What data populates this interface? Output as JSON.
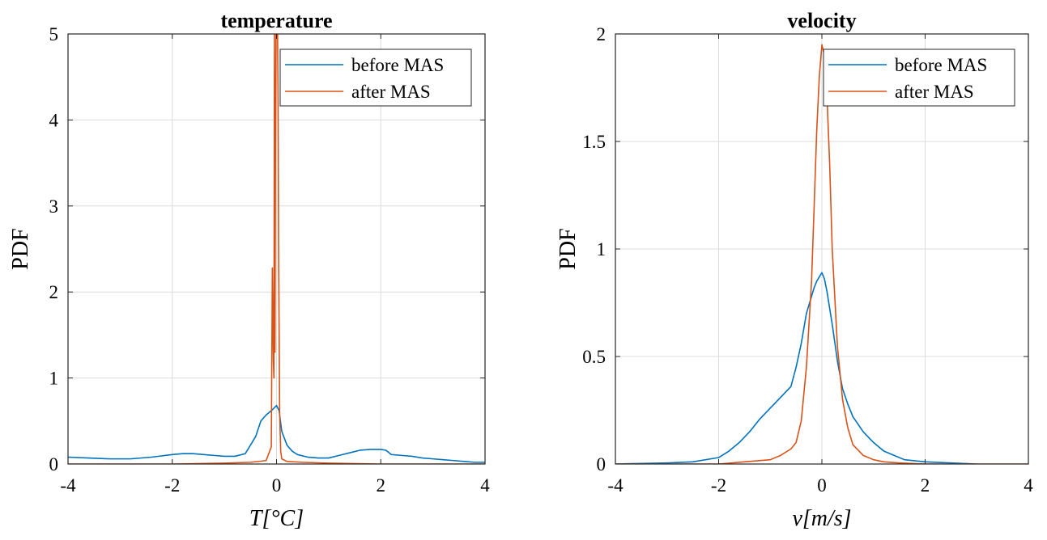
{
  "chart_data": [
    {
      "type": "line",
      "title": "temperature",
      "xlabel": "T[°C]",
      "ylabel": "PDF",
      "xlim": [
        -4,
        4
      ],
      "ylim": [
        0,
        5
      ],
      "xticks": [
        -4,
        -2,
        0,
        2,
        4
      ],
      "yticks": [
        0,
        1,
        2,
        3,
        4,
        5
      ],
      "grid": true,
      "legend": "top-right",
      "series": [
        {
          "name": "before MAS",
          "color": "#0072BD",
          "x": [
            -4.0,
            -3.6,
            -3.2,
            -2.8,
            -2.4,
            -2.0,
            -1.8,
            -1.6,
            -1.4,
            -1.2,
            -1.0,
            -0.8,
            -0.6,
            -0.4,
            -0.3,
            -0.2,
            -0.1,
            0.0,
            0.05,
            0.1,
            0.2,
            0.3,
            0.4,
            0.6,
            0.8,
            1.0,
            1.2,
            1.4,
            1.6,
            1.8,
            2.0,
            2.1,
            2.2,
            2.4,
            2.6,
            2.8,
            3.0,
            3.2,
            3.4,
            3.6,
            3.8,
            4.0
          ],
          "y": [
            0.08,
            0.07,
            0.06,
            0.06,
            0.08,
            0.11,
            0.12,
            0.12,
            0.11,
            0.1,
            0.09,
            0.09,
            0.12,
            0.32,
            0.5,
            0.57,
            0.62,
            0.68,
            0.62,
            0.38,
            0.22,
            0.15,
            0.11,
            0.08,
            0.07,
            0.07,
            0.1,
            0.13,
            0.16,
            0.17,
            0.17,
            0.16,
            0.11,
            0.1,
            0.09,
            0.07,
            0.06,
            0.05,
            0.04,
            0.03,
            0.02,
            0.02
          ]
        },
        {
          "name": "after MAS",
          "color": "#D95319",
          "x": [
            -4.0,
            -2.0,
            -1.0,
            -0.5,
            -0.2,
            -0.1,
            -0.08,
            -0.06,
            -0.05,
            -0.04,
            -0.03,
            -0.02,
            -0.01,
            0.0,
            0.01,
            0.02,
            0.03,
            0.04,
            0.06,
            0.08,
            0.1,
            0.2,
            0.5,
            1.0,
            2.0,
            4.0
          ],
          "y": [
            0.0,
            0.0,
            0.01,
            0.02,
            0.04,
            0.2,
            2.28,
            1.2,
            1.0,
            5.0,
            1.3,
            3.6,
            5.0,
            5.0,
            5.0,
            5.0,
            4.2,
            2.5,
            0.6,
            0.15,
            0.06,
            0.03,
            0.02,
            0.01,
            0.0,
            0.0
          ]
        }
      ]
    },
    {
      "type": "line",
      "title": "velocity",
      "xlabel": "v[m/s]",
      "ylabel": "PDF",
      "xlim": [
        -4,
        4
      ],
      "ylim": [
        0,
        2
      ],
      "xticks": [
        -4,
        -2,
        0,
        2,
        4
      ],
      "yticks": [
        0,
        0.5,
        1,
        1.5,
        2
      ],
      "grid": true,
      "legend": "top-right",
      "series": [
        {
          "name": "before MAS",
          "color": "#0072BD",
          "x": [
            -4.0,
            -3.0,
            -2.5,
            -2.0,
            -1.8,
            -1.6,
            -1.4,
            -1.2,
            -1.0,
            -0.8,
            -0.6,
            -0.5,
            -0.4,
            -0.3,
            -0.2,
            -0.15,
            -0.1,
            -0.05,
            0.0,
            0.05,
            0.1,
            0.2,
            0.3,
            0.4,
            0.5,
            0.6,
            0.8,
            1.0,
            1.2,
            1.4,
            1.6,
            2.0,
            2.5,
            3.0
          ],
          "y": [
            0.0,
            0.005,
            0.01,
            0.03,
            0.06,
            0.1,
            0.15,
            0.21,
            0.26,
            0.31,
            0.36,
            0.45,
            0.56,
            0.7,
            0.78,
            0.82,
            0.85,
            0.87,
            0.89,
            0.86,
            0.8,
            0.65,
            0.48,
            0.35,
            0.28,
            0.22,
            0.15,
            0.1,
            0.06,
            0.04,
            0.02,
            0.01,
            0.005,
            0.0
          ]
        },
        {
          "name": "after MAS",
          "color": "#D95319",
          "x": [
            -4.0,
            -2.0,
            -1.5,
            -1.0,
            -0.8,
            -0.6,
            -0.5,
            -0.4,
            -0.3,
            -0.2,
            -0.15,
            -0.1,
            -0.05,
            0.0,
            0.05,
            0.1,
            0.15,
            0.2,
            0.3,
            0.4,
            0.5,
            0.6,
            0.8,
            1.0,
            1.2,
            1.5,
            2.0,
            4.0
          ],
          "y": [
            0.0,
            0.0,
            0.01,
            0.02,
            0.04,
            0.07,
            0.1,
            0.2,
            0.45,
            0.85,
            1.2,
            1.55,
            1.8,
            1.95,
            1.9,
            1.7,
            1.4,
            1.0,
            0.55,
            0.3,
            0.17,
            0.09,
            0.04,
            0.02,
            0.01,
            0.005,
            0.0,
            0.0
          ]
        }
      ]
    }
  ]
}
